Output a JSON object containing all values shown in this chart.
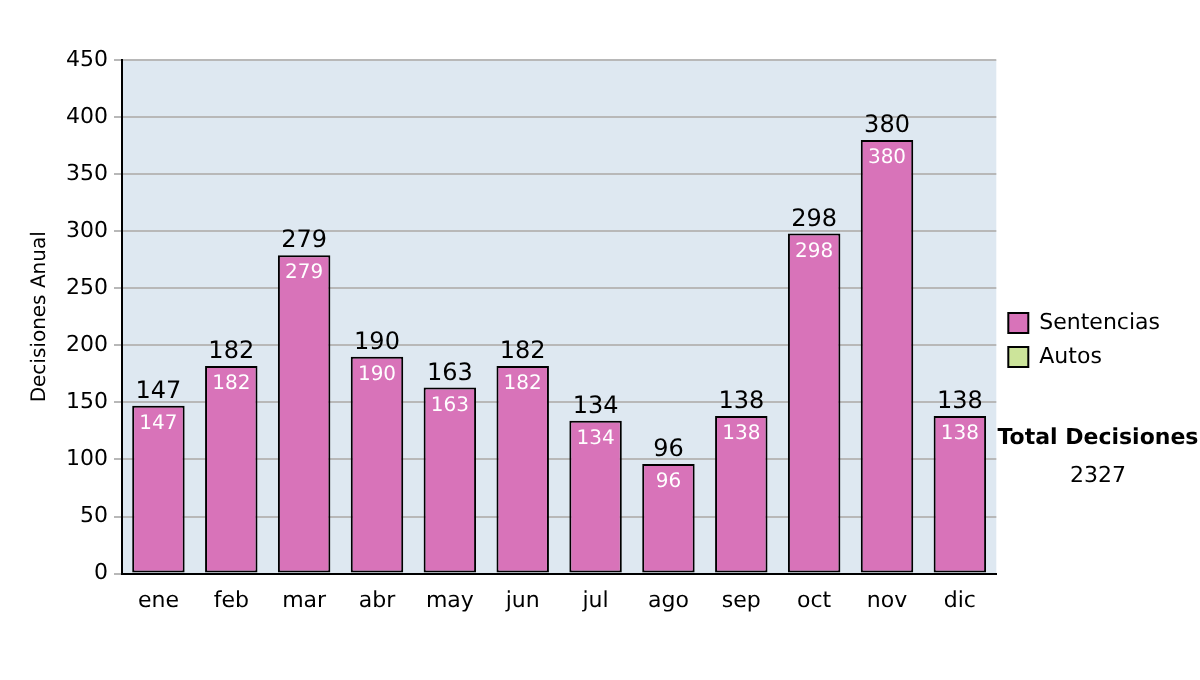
{
  "chart_data": {
    "type": "bar",
    "ylabel": "Decisiones Anual",
    "categories": [
      "ene",
      "feb",
      "mar",
      "abr",
      "may",
      "jun",
      "jul",
      "ago",
      "sep",
      "oct",
      "nov",
      "dic"
    ],
    "series": [
      {
        "name": "Sentencias",
        "color": "#d873b9",
        "values": [
          147,
          182,
          279,
          190,
          163,
          182,
          134,
          96,
          138,
          298,
          380,
          138
        ],
        "value_labels": [
          "147",
          "182",
          "279",
          "190",
          "163",
          "182",
          "134",
          "96",
          "138",
          "298",
          "380",
          "138"
        ]
      },
      {
        "name": "Autos",
        "color": "#cce49a",
        "values": [
          0,
          0,
          0,
          0,
          0,
          0,
          0,
          0,
          0,
          0,
          0,
          0
        ]
      }
    ],
    "stacked": true,
    "totals": [
      "147",
      "182",
      "279",
      "190",
      "163",
      "182",
      "134",
      "96",
      "138",
      "298",
      "380",
      "138"
    ],
    "ylim": [
      0,
      450
    ],
    "yticks": [
      0,
      50,
      100,
      150,
      200,
      250,
      300,
      350,
      400,
      450
    ],
    "grid": "y",
    "legend": "right",
    "annotations": [
      "Total Decisiones",
      "2327"
    ]
  }
}
